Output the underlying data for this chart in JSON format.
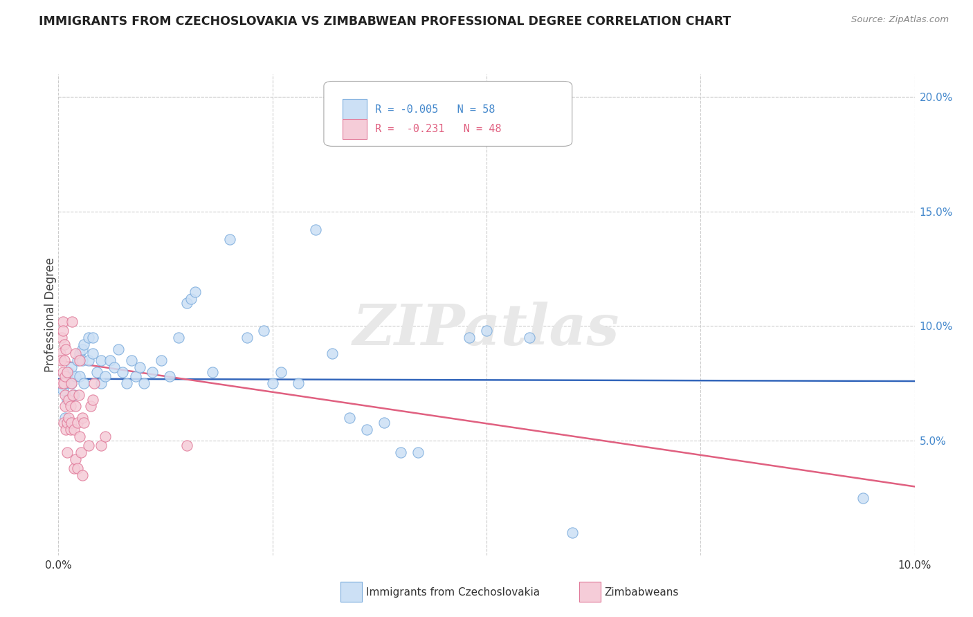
{
  "title": "IMMIGRANTS FROM CZECHOSLOVAKIA VS ZIMBABWEAN PROFESSIONAL DEGREE CORRELATION CHART",
  "source": "Source: ZipAtlas.com",
  "ylabel": "Professional Degree",
  "right_yticks": [
    "20.0%",
    "15.0%",
    "10.0%",
    "5.0%"
  ],
  "right_ytick_vals": [
    20.0,
    15.0,
    10.0,
    5.0
  ],
  "legend1_r": "-0.005",
  "legend1_n": "58",
  "legend2_r": "-0.231",
  "legend2_n": "48",
  "color_czech": "#cce0f5",
  "color_zimb": "#f5ccd8",
  "color_czech_edge": "#7aabdc",
  "color_zimb_edge": "#e07898",
  "color_czech_line": "#3366bb",
  "color_zimb_line": "#e06080",
  "watermark": "ZIPatlas",
  "xmin": 0.0,
  "xmax": 10.0,
  "ymin": 0.0,
  "ymax": 21.0,
  "scatter_czech": [
    [
      0.05,
      7.2
    ],
    [
      0.08,
      7.5
    ],
    [
      0.1,
      6.8
    ],
    [
      0.1,
      7.8
    ],
    [
      0.12,
      8.0
    ],
    [
      0.15,
      7.5
    ],
    [
      0.15,
      8.2
    ],
    [
      0.18,
      7.0
    ],
    [
      0.2,
      7.8
    ],
    [
      0.22,
      8.5
    ],
    [
      0.25,
      7.8
    ],
    [
      0.25,
      8.8
    ],
    [
      0.28,
      9.0
    ],
    [
      0.28,
      8.5
    ],
    [
      0.3,
      9.2
    ],
    [
      0.3,
      7.5
    ],
    [
      0.35,
      9.5
    ],
    [
      0.35,
      8.5
    ],
    [
      0.4,
      9.5
    ],
    [
      0.4,
      8.8
    ],
    [
      0.45,
      8.0
    ],
    [
      0.5,
      8.5
    ],
    [
      0.5,
      7.5
    ],
    [
      0.55,
      7.8
    ],
    [
      0.6,
      8.5
    ],
    [
      0.65,
      8.2
    ],
    [
      0.7,
      9.0
    ],
    [
      0.75,
      8.0
    ],
    [
      0.8,
      7.5
    ],
    [
      0.85,
      8.5
    ],
    [
      0.9,
      7.8
    ],
    [
      0.95,
      8.2
    ],
    [
      1.0,
      7.5
    ],
    [
      1.1,
      8.0
    ],
    [
      1.2,
      8.5
    ],
    [
      1.3,
      7.8
    ],
    [
      1.4,
      9.5
    ],
    [
      1.5,
      11.0
    ],
    [
      1.55,
      11.2
    ],
    [
      1.6,
      11.5
    ],
    [
      1.8,
      8.0
    ],
    [
      2.0,
      13.8
    ],
    [
      2.2,
      9.5
    ],
    [
      2.4,
      9.8
    ],
    [
      2.5,
      7.5
    ],
    [
      2.6,
      8.0
    ],
    [
      2.8,
      7.5
    ],
    [
      3.0,
      14.2
    ],
    [
      3.2,
      8.8
    ],
    [
      3.4,
      6.0
    ],
    [
      3.6,
      5.5
    ],
    [
      3.8,
      5.8
    ],
    [
      4.0,
      4.5
    ],
    [
      4.2,
      4.5
    ],
    [
      4.8,
      9.5
    ],
    [
      5.0,
      9.8
    ],
    [
      5.5,
      9.5
    ],
    [
      6.0,
      1.0
    ],
    [
      9.4,
      2.5
    ],
    [
      0.08,
      6.0
    ]
  ],
  "scatter_zimb": [
    [
      0.02,
      8.8
    ],
    [
      0.03,
      8.5
    ],
    [
      0.04,
      9.5
    ],
    [
      0.04,
      7.5
    ],
    [
      0.05,
      10.2
    ],
    [
      0.05,
      9.8
    ],
    [
      0.05,
      8.0
    ],
    [
      0.06,
      7.5
    ],
    [
      0.06,
      5.8
    ],
    [
      0.07,
      9.2
    ],
    [
      0.07,
      8.5
    ],
    [
      0.08,
      7.8
    ],
    [
      0.08,
      7.0
    ],
    [
      0.08,
      6.5
    ],
    [
      0.09,
      9.0
    ],
    [
      0.09,
      5.5
    ],
    [
      0.1,
      8.0
    ],
    [
      0.1,
      5.8
    ],
    [
      0.1,
      4.5
    ],
    [
      0.12,
      6.8
    ],
    [
      0.12,
      6.0
    ],
    [
      0.14,
      6.5
    ],
    [
      0.14,
      5.5
    ],
    [
      0.15,
      7.5
    ],
    [
      0.15,
      5.8
    ],
    [
      0.16,
      10.2
    ],
    [
      0.17,
      7.0
    ],
    [
      0.18,
      5.5
    ],
    [
      0.18,
      3.8
    ],
    [
      0.2,
      8.8
    ],
    [
      0.2,
      6.5
    ],
    [
      0.2,
      4.2
    ],
    [
      0.22,
      5.8
    ],
    [
      0.22,
      3.8
    ],
    [
      0.24,
      7.0
    ],
    [
      0.25,
      8.5
    ],
    [
      0.25,
      5.2
    ],
    [
      0.26,
      4.5
    ],
    [
      0.28,
      6.0
    ],
    [
      0.28,
      3.5
    ],
    [
      0.3,
      5.8
    ],
    [
      0.35,
      4.8
    ],
    [
      0.38,
      6.5
    ],
    [
      0.4,
      6.8
    ],
    [
      0.42,
      7.5
    ],
    [
      0.5,
      4.8
    ],
    [
      0.55,
      5.2
    ],
    [
      1.5,
      4.8
    ]
  ],
  "czech_trend_x": [
    0.0,
    10.0
  ],
  "czech_trend_y": [
    7.7,
    7.6
  ],
  "zimb_trend_x": [
    0.0,
    10.0
  ],
  "zimb_trend_y": [
    8.5,
    3.0
  ]
}
